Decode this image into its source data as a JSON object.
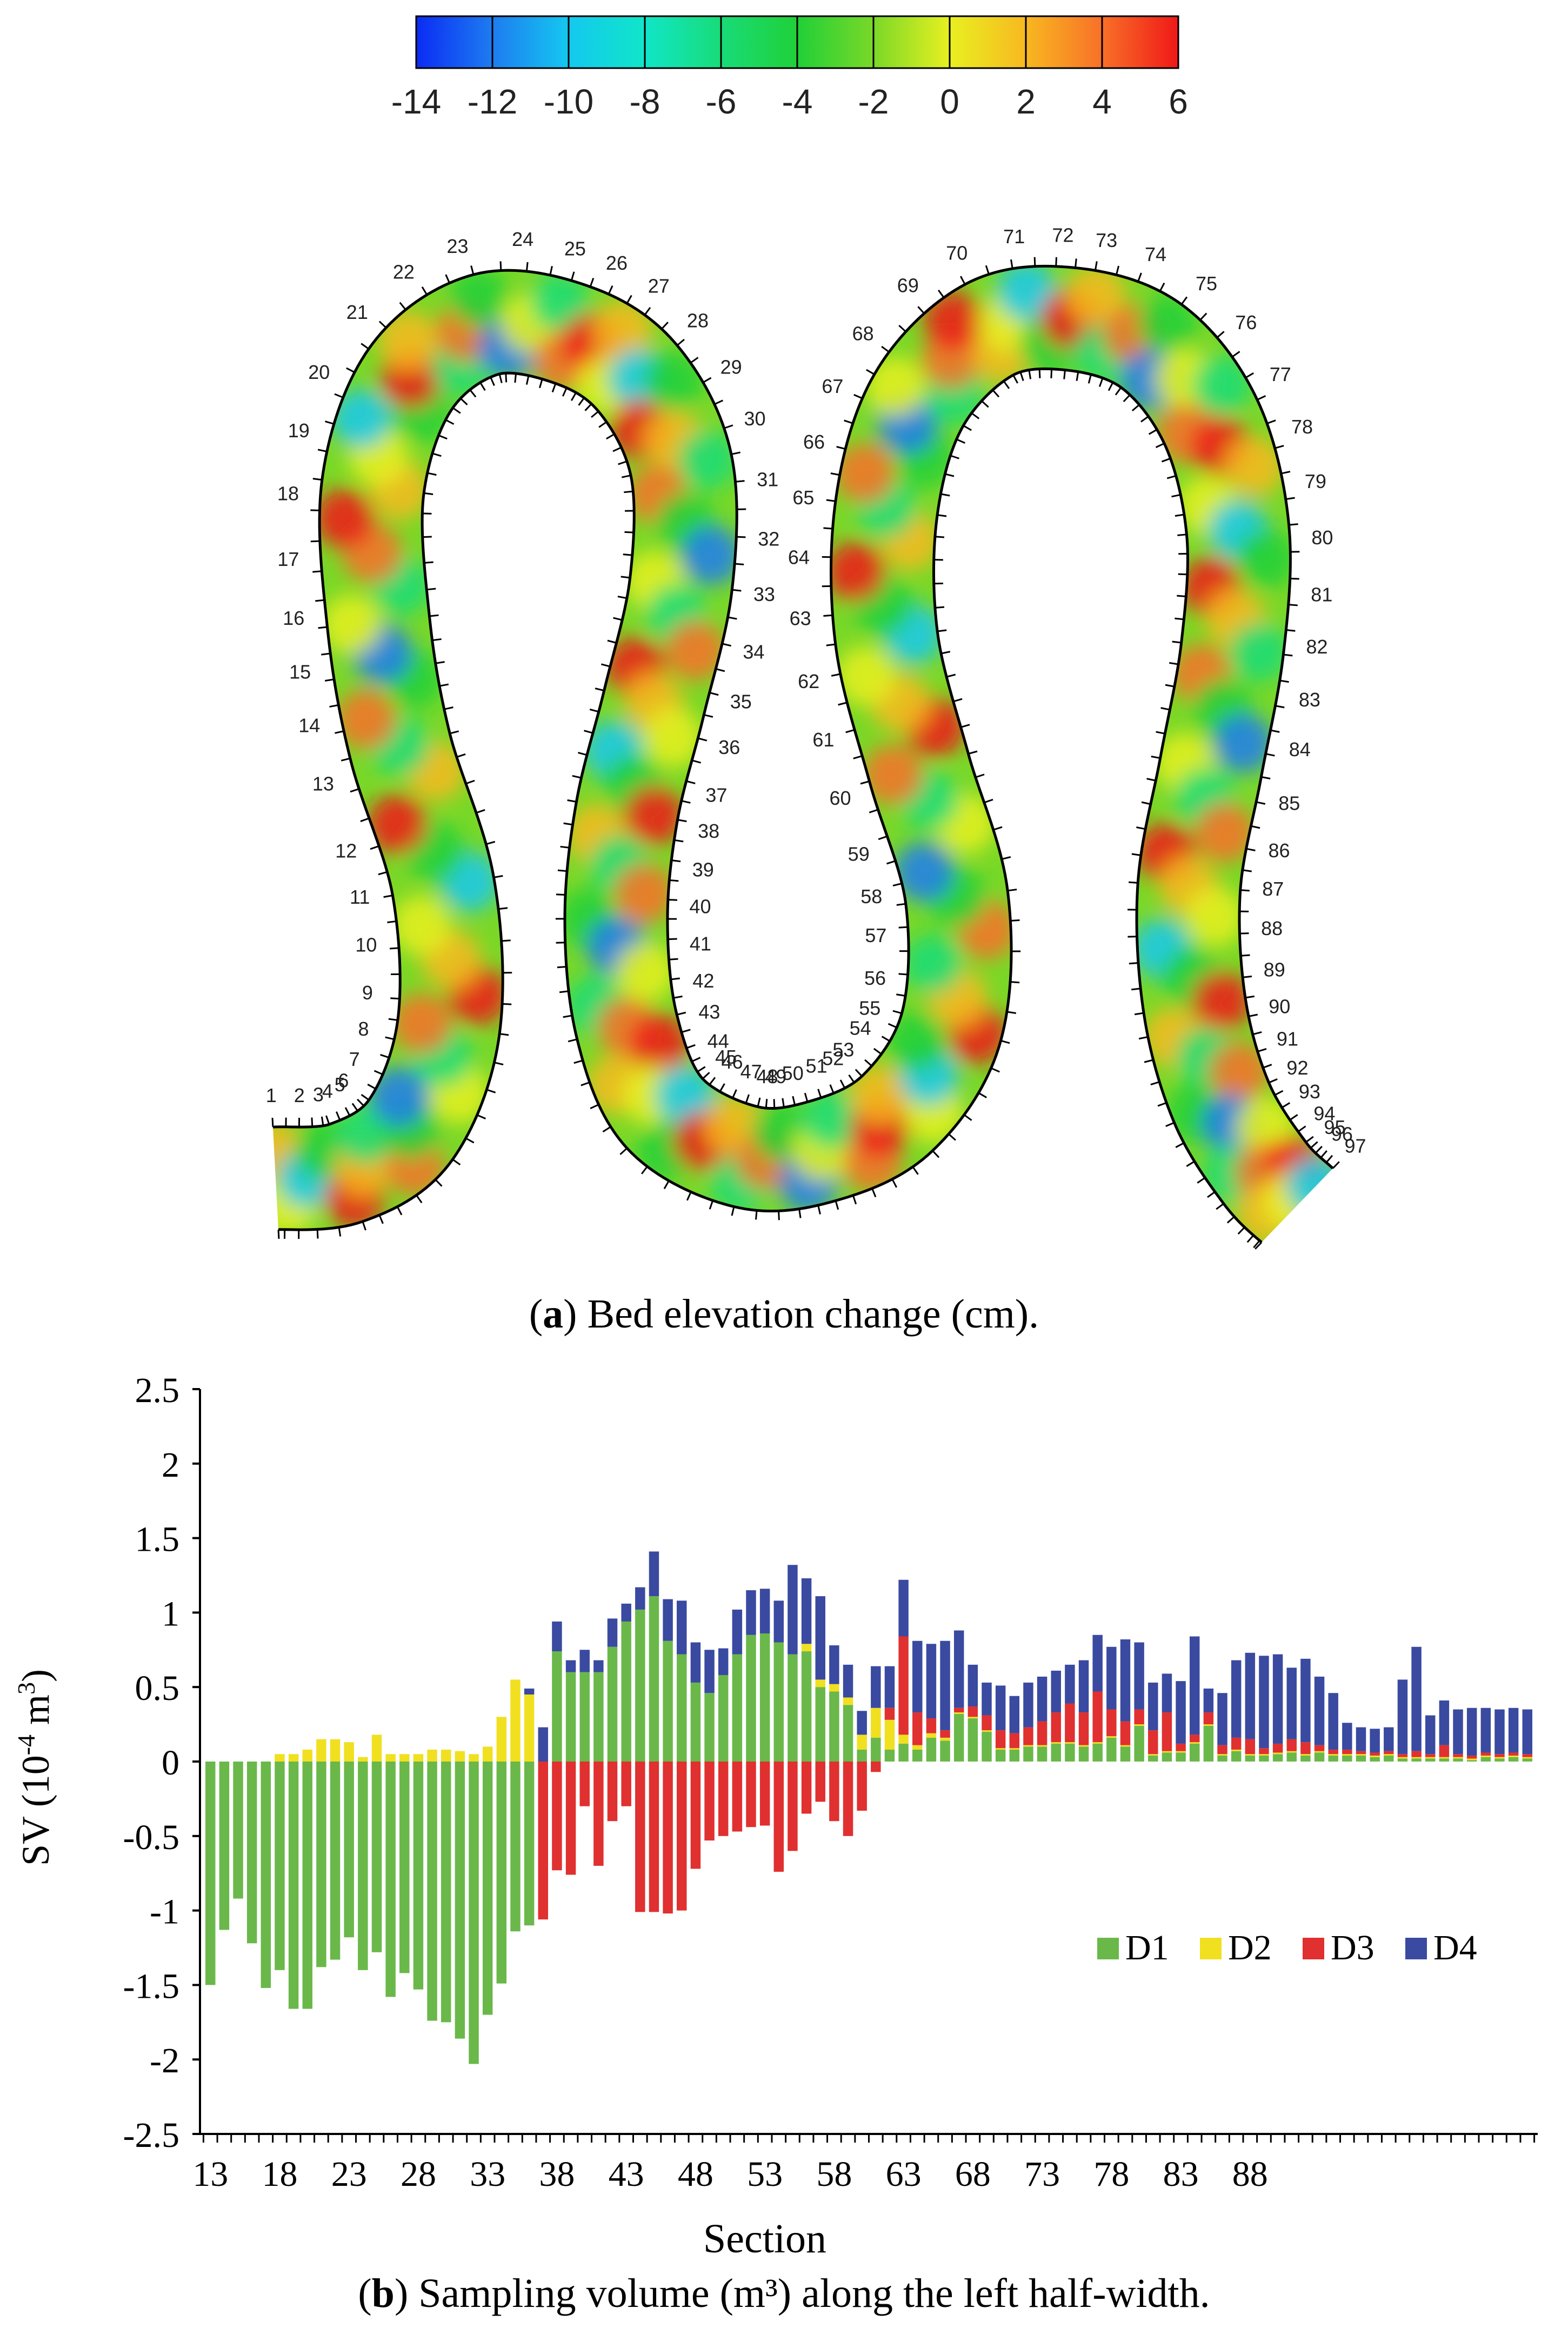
{
  "figure": {
    "caption_a_letter": "a",
    "caption_a_text": "Bed elevation change (cm).",
    "caption_b_letter": "b",
    "caption_b_text": "Sampling volume (m³) along the left half-width."
  },
  "colorbar": {
    "ticks": [
      "-14",
      "-12",
      "-10",
      "-8",
      "-6",
      "-4",
      "-2",
      "0",
      "2",
      "4",
      "6"
    ],
    "colors": [
      "#0a2cf4",
      "#1e7cf0",
      "#14c8f0",
      "#10e6c8",
      "#18dc78",
      "#20d038",
      "#7ad828",
      "#e8f020",
      "#f8b820",
      "#f87028",
      "#f01818"
    ]
  },
  "map": {
    "section_labels": [
      "1",
      "2",
      "3",
      "4",
      "5",
      "6",
      "7",
      "8",
      "9",
      "10",
      "11",
      "12",
      "13",
      "14",
      "15",
      "16",
      "17",
      "18",
      "19",
      "20",
      "21",
      "22",
      "23",
      "24",
      "25",
      "26",
      "27",
      "28",
      "29",
      "30",
      "31",
      "32",
      "33",
      "34",
      "35",
      "36",
      "37",
      "38",
      "39",
      "40",
      "41",
      "42",
      "43",
      "44",
      "45",
      "46",
      "47",
      "48",
      "49",
      "50",
      "51",
      "52",
      "53",
      "54",
      "55",
      "56",
      "57",
      "58",
      "59",
      "60",
      "61",
      "62",
      "63",
      "64",
      "65",
      "66",
      "67",
      "68",
      "69",
      "70",
      "71",
      "72",
      "73",
      "74",
      "75",
      "76",
      "77",
      "78",
      "79",
      "80",
      "81",
      "82",
      "83",
      "84",
      "85",
      "86",
      "87",
      "88",
      "89",
      "90",
      "91",
      "92",
      "93",
      "94",
      "95",
      "96",
      "97"
    ]
  },
  "chart_data": {
    "type": "bar",
    "stacked": true,
    "xlabel": "Section",
    "ylabel": "SV (10",
    "ylabel_sup1": "-4",
    "ylabel_unit": " m",
    "ylabel_sup2": "3",
    "ylabel_close": ")",
    "ylim": [
      -2.5,
      2.5
    ],
    "y_ticks": [
      "2.5",
      "2",
      "1.5",
      "1",
      "0.5",
      "0",
      "-0.5",
      "-1",
      "-1.5",
      "-2",
      "-2.5"
    ],
    "x_tick_labels": [
      "13",
      "18",
      "23",
      "28",
      "33",
      "38",
      "43",
      "48",
      "53",
      "58",
      "63",
      "68",
      "73",
      "78",
      "83",
      "88"
    ],
    "legend_position": "lower-right",
    "sections_first": 13,
    "series": [
      {
        "name": "D1",
        "color": "#6ab84a",
        "values": [
          -1.5,
          -1.13,
          -0.92,
          -1.22,
          -1.52,
          -1.4,
          -1.66,
          -1.66,
          -1.38,
          -1.33,
          -1.18,
          -1.4,
          -1.28,
          -1.58,
          -1.42,
          -1.53,
          -1.74,
          -1.75,
          -1.86,
          -2.03,
          -1.7,
          -1.49,
          -1.14,
          -1.1,
          0.0,
          0.74,
          0.6,
          0.6,
          0.6,
          0.77,
          0.94,
          1.02,
          1.11,
          0.81,
          0.72,
          0.53,
          0.46,
          0.58,
          0.72,
          0.85,
          0.86,
          0.8,
          0.72,
          0.74,
          0.5,
          0.47,
          0.38,
          0.08,
          0.16,
          0.08,
          0.12,
          0.08,
          0.16,
          0.14,
          0.32,
          0.29,
          0.2,
          0.08,
          0.08,
          0.1,
          0.1,
          0.12,
          0.12,
          0.1,
          0.12,
          0.16,
          0.1,
          0.24,
          0.04,
          0.06,
          0.06,
          0.12,
          0.24,
          0.04,
          0.07,
          0.04,
          0.04,
          0.05,
          0.06,
          0.04,
          0.06,
          0.04,
          0.04,
          0.04,
          0.03,
          0.04,
          0.02,
          0.02,
          0.02,
          0.02,
          0.02,
          0.01,
          0.03,
          0.02,
          0.03,
          0.02
        ]
      },
      {
        "name": "D2",
        "color": "#f0e020",
        "values": [
          0,
          0,
          0,
          0,
          0.0,
          0.05,
          0.05,
          0.08,
          0.15,
          0.15,
          0.13,
          0.03,
          0.18,
          0.05,
          0.05,
          0.05,
          0.08,
          0.08,
          0.07,
          0.05,
          0.1,
          0.3,
          0.55,
          0.45,
          0.0,
          0.0,
          0.0,
          0.0,
          0.0,
          0.0,
          0.0,
          0.0,
          0.0,
          0.0,
          0.0,
          0.0,
          0.0,
          0.0,
          0.0,
          0.0,
          0.0,
          0.0,
          0.0,
          0.05,
          0.05,
          0.05,
          0.05,
          0.1,
          0.2,
          0.2,
          0.06,
          0.03,
          0.03,
          0.02,
          0.01,
          0.01,
          0.01,
          0.01,
          0.01,
          0.01,
          0.01,
          0.01,
          0.01,
          0.01,
          0.01,
          0.01,
          0.01,
          0.01,
          0.01,
          0.01,
          0.01,
          0.01,
          0.01,
          0.01,
          0.01,
          0.01,
          0.01,
          0.01,
          0.01,
          0.01,
          0.01,
          0.01,
          0.01,
          0.01,
          0.01,
          0.01,
          0.01,
          0.01,
          0.01,
          0.01,
          0.01,
          0.01,
          0.01,
          0.01,
          0.01,
          0.01
        ]
      },
      {
        "name": "D3",
        "color": "#e03030",
        "values": [
          0,
          0,
          0,
          0,
          0,
          0,
          0,
          0,
          0,
          0,
          0,
          0,
          0,
          0,
          0,
          0,
          0,
          0,
          0,
          0,
          0,
          0,
          0,
          0,
          -1.06,
          -0.73,
          -0.76,
          -0.3,
          -0.7,
          -0.4,
          -0.3,
          -1.01,
          -1.01,
          -1.02,
          -1.0,
          -0.72,
          -0.53,
          -0.5,
          -0.47,
          -0.44,
          -0.43,
          -0.74,
          -0.6,
          -0.35,
          -0.27,
          -0.4,
          -0.5,
          -0.33,
          -0.07,
          0.08,
          0.66,
          0.22,
          0.1,
          0.05,
          0.03,
          0.07,
          0.1,
          0.12,
          0.1,
          0.12,
          0.16,
          0.2,
          0.26,
          0.22,
          0.34,
          0.18,
          0.16,
          0.1,
          0.16,
          0.26,
          0.05,
          0.05,
          0.08,
          0.06,
          0.08,
          0.1,
          0.04,
          0.06,
          0.08,
          0.08,
          0.04,
          0.03,
          0.03,
          0.02,
          0.02,
          0.02,
          0.02,
          0.04,
          0.02,
          0.08,
          0.02,
          0.02,
          0.02,
          0.02,
          0.02,
          0.02
        ]
      },
      {
        "name": "D4",
        "color": "#3a4aa0",
        "values": [
          0,
          0,
          0,
          0,
          0,
          0,
          0,
          0,
          0,
          0,
          0,
          0,
          0,
          0,
          0,
          0,
          0,
          0,
          0,
          0,
          0,
          0,
          0,
          0.04,
          0.23,
          0.2,
          0.08,
          0.15,
          0.08,
          0.19,
          0.12,
          0.15,
          0.3,
          0.28,
          0.36,
          0.27,
          0.29,
          0.18,
          0.3,
          0.3,
          0.3,
          0.28,
          0.6,
          0.44,
          0.56,
          0.26,
          0.22,
          0.16,
          0.28,
          0.28,
          0.38,
          0.48,
          0.5,
          0.6,
          0.52,
          0.28,
          0.22,
          0.3,
          0.25,
          0.3,
          0.3,
          0.28,
          0.26,
          0.35,
          0.38,
          0.42,
          0.55,
          0.45,
          0.32,
          0.26,
          0.42,
          0.66,
          0.16,
          0.35,
          0.52,
          0.58,
          0.62,
          0.6,
          0.48,
          0.56,
          0.46,
          0.38,
          0.18,
          0.16,
          0.16,
          0.16,
          0.5,
          0.7,
          0.26,
          0.3,
          0.3,
          0.32,
          0.3,
          0.3,
          0.3,
          0.3
        ]
      }
    ],
    "legend": [
      {
        "name": "D1",
        "color": "#6ab84a"
      },
      {
        "name": "D2",
        "color": "#f0e020"
      },
      {
        "name": "D3",
        "color": "#e03030"
      },
      {
        "name": "D4",
        "color": "#3a4aa0"
      }
    ]
  }
}
